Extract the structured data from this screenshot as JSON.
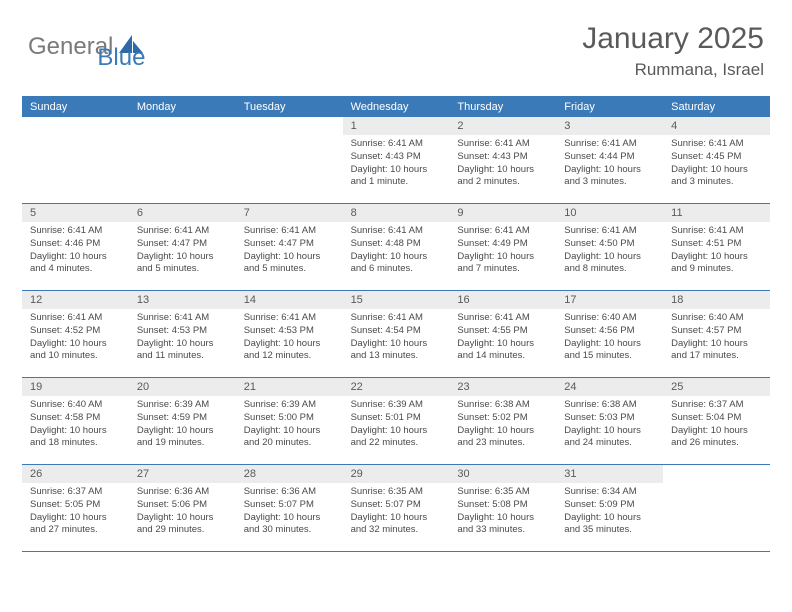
{
  "brand": {
    "part1": "General",
    "part2": "Blue"
  },
  "title": "January 2025",
  "location": "Rummana, Israel",
  "weekdays": [
    "Sunday",
    "Monday",
    "Tuesday",
    "Wednesday",
    "Thursday",
    "Friday",
    "Saturday"
  ],
  "colors": {
    "accent": "#3a7ab8",
    "header_bg": "#3a7ab8",
    "daynum_bg": "#ececec",
    "text": "#4a4a4a",
    "title_text": "#5a5a5a"
  },
  "weeks": [
    [
      {
        "day": "",
        "sunrise": "",
        "sunset": "",
        "daylight": ""
      },
      {
        "day": "",
        "sunrise": "",
        "sunset": "",
        "daylight": ""
      },
      {
        "day": "",
        "sunrise": "",
        "sunset": "",
        "daylight": ""
      },
      {
        "day": "1",
        "sunrise": "Sunrise: 6:41 AM",
        "sunset": "Sunset: 4:43 PM",
        "daylight": "Daylight: 10 hours and 1 minute."
      },
      {
        "day": "2",
        "sunrise": "Sunrise: 6:41 AM",
        "sunset": "Sunset: 4:43 PM",
        "daylight": "Daylight: 10 hours and 2 minutes."
      },
      {
        "day": "3",
        "sunrise": "Sunrise: 6:41 AM",
        "sunset": "Sunset: 4:44 PM",
        "daylight": "Daylight: 10 hours and 3 minutes."
      },
      {
        "day": "4",
        "sunrise": "Sunrise: 6:41 AM",
        "sunset": "Sunset: 4:45 PM",
        "daylight": "Daylight: 10 hours and 3 minutes."
      }
    ],
    [
      {
        "day": "5",
        "sunrise": "Sunrise: 6:41 AM",
        "sunset": "Sunset: 4:46 PM",
        "daylight": "Daylight: 10 hours and 4 minutes."
      },
      {
        "day": "6",
        "sunrise": "Sunrise: 6:41 AM",
        "sunset": "Sunset: 4:47 PM",
        "daylight": "Daylight: 10 hours and 5 minutes."
      },
      {
        "day": "7",
        "sunrise": "Sunrise: 6:41 AM",
        "sunset": "Sunset: 4:47 PM",
        "daylight": "Daylight: 10 hours and 5 minutes."
      },
      {
        "day": "8",
        "sunrise": "Sunrise: 6:41 AM",
        "sunset": "Sunset: 4:48 PM",
        "daylight": "Daylight: 10 hours and 6 minutes."
      },
      {
        "day": "9",
        "sunrise": "Sunrise: 6:41 AM",
        "sunset": "Sunset: 4:49 PM",
        "daylight": "Daylight: 10 hours and 7 minutes."
      },
      {
        "day": "10",
        "sunrise": "Sunrise: 6:41 AM",
        "sunset": "Sunset: 4:50 PM",
        "daylight": "Daylight: 10 hours and 8 minutes."
      },
      {
        "day": "11",
        "sunrise": "Sunrise: 6:41 AM",
        "sunset": "Sunset: 4:51 PM",
        "daylight": "Daylight: 10 hours and 9 minutes."
      }
    ],
    [
      {
        "day": "12",
        "sunrise": "Sunrise: 6:41 AM",
        "sunset": "Sunset: 4:52 PM",
        "daylight": "Daylight: 10 hours and 10 minutes."
      },
      {
        "day": "13",
        "sunrise": "Sunrise: 6:41 AM",
        "sunset": "Sunset: 4:53 PM",
        "daylight": "Daylight: 10 hours and 11 minutes."
      },
      {
        "day": "14",
        "sunrise": "Sunrise: 6:41 AM",
        "sunset": "Sunset: 4:53 PM",
        "daylight": "Daylight: 10 hours and 12 minutes."
      },
      {
        "day": "15",
        "sunrise": "Sunrise: 6:41 AM",
        "sunset": "Sunset: 4:54 PM",
        "daylight": "Daylight: 10 hours and 13 minutes."
      },
      {
        "day": "16",
        "sunrise": "Sunrise: 6:41 AM",
        "sunset": "Sunset: 4:55 PM",
        "daylight": "Daylight: 10 hours and 14 minutes."
      },
      {
        "day": "17",
        "sunrise": "Sunrise: 6:40 AM",
        "sunset": "Sunset: 4:56 PM",
        "daylight": "Daylight: 10 hours and 15 minutes."
      },
      {
        "day": "18",
        "sunrise": "Sunrise: 6:40 AM",
        "sunset": "Sunset: 4:57 PM",
        "daylight": "Daylight: 10 hours and 17 minutes."
      }
    ],
    [
      {
        "day": "19",
        "sunrise": "Sunrise: 6:40 AM",
        "sunset": "Sunset: 4:58 PM",
        "daylight": "Daylight: 10 hours and 18 minutes."
      },
      {
        "day": "20",
        "sunrise": "Sunrise: 6:39 AM",
        "sunset": "Sunset: 4:59 PM",
        "daylight": "Daylight: 10 hours and 19 minutes."
      },
      {
        "day": "21",
        "sunrise": "Sunrise: 6:39 AM",
        "sunset": "Sunset: 5:00 PM",
        "daylight": "Daylight: 10 hours and 20 minutes."
      },
      {
        "day": "22",
        "sunrise": "Sunrise: 6:39 AM",
        "sunset": "Sunset: 5:01 PM",
        "daylight": "Daylight: 10 hours and 22 minutes."
      },
      {
        "day": "23",
        "sunrise": "Sunrise: 6:38 AM",
        "sunset": "Sunset: 5:02 PM",
        "daylight": "Daylight: 10 hours and 23 minutes."
      },
      {
        "day": "24",
        "sunrise": "Sunrise: 6:38 AM",
        "sunset": "Sunset: 5:03 PM",
        "daylight": "Daylight: 10 hours and 24 minutes."
      },
      {
        "day": "25",
        "sunrise": "Sunrise: 6:37 AM",
        "sunset": "Sunset: 5:04 PM",
        "daylight": "Daylight: 10 hours and 26 minutes."
      }
    ],
    [
      {
        "day": "26",
        "sunrise": "Sunrise: 6:37 AM",
        "sunset": "Sunset: 5:05 PM",
        "daylight": "Daylight: 10 hours and 27 minutes."
      },
      {
        "day": "27",
        "sunrise": "Sunrise: 6:36 AM",
        "sunset": "Sunset: 5:06 PM",
        "daylight": "Daylight: 10 hours and 29 minutes."
      },
      {
        "day": "28",
        "sunrise": "Sunrise: 6:36 AM",
        "sunset": "Sunset: 5:07 PM",
        "daylight": "Daylight: 10 hours and 30 minutes."
      },
      {
        "day": "29",
        "sunrise": "Sunrise: 6:35 AM",
        "sunset": "Sunset: 5:07 PM",
        "daylight": "Daylight: 10 hours and 32 minutes."
      },
      {
        "day": "30",
        "sunrise": "Sunrise: 6:35 AM",
        "sunset": "Sunset: 5:08 PM",
        "daylight": "Daylight: 10 hours and 33 minutes."
      },
      {
        "day": "31",
        "sunrise": "Sunrise: 6:34 AM",
        "sunset": "Sunset: 5:09 PM",
        "daylight": "Daylight: 10 hours and 35 minutes."
      },
      {
        "day": "",
        "sunrise": "",
        "sunset": "",
        "daylight": ""
      }
    ]
  ]
}
